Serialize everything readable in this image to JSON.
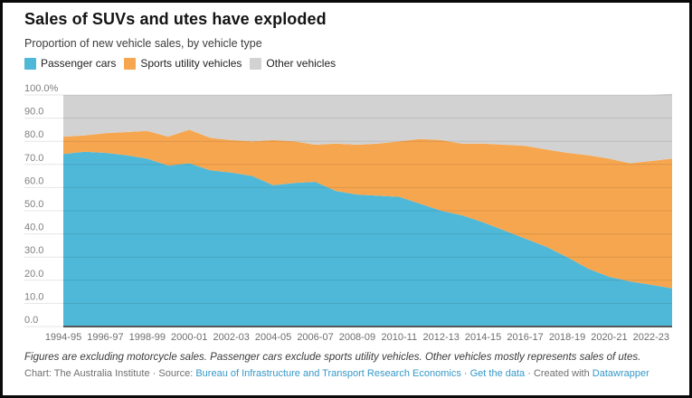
{
  "card": {
    "title": "Sales of SUVs and utes have exploded",
    "subtitle": "Proportion of new vehicle sales, by vehicle type"
  },
  "legend": {
    "items": [
      {
        "label": "Passenger cars",
        "color": "#4FB8D8"
      },
      {
        "label": "Sports utility vehicles",
        "color": "#F6A64F"
      },
      {
        "label": "Other vehicles",
        "color": "#D2D2D2"
      }
    ]
  },
  "chart_data": {
    "type": "area",
    "stacked": true,
    "unit": "%",
    "title": "Sales of SUVs and utes have exploded",
    "subtitle": "Proportion of new vehicle sales, by vehicle type",
    "grid": true,
    "legend_position": "top",
    "ylim": [
      0,
      100
    ],
    "x": [
      "1994-95",
      "1995-96",
      "1996-97",
      "1997-98",
      "1998-99",
      "1999-00",
      "2000-01",
      "2001-02",
      "2002-03",
      "2003-04",
      "2004-05",
      "2005-06",
      "2006-07",
      "2007-08",
      "2008-09",
      "2009-10",
      "2010-11",
      "2011-12",
      "2012-13",
      "2013-14",
      "2014-15",
      "2015-16",
      "2016-17",
      "2017-18",
      "2018-19",
      "2019-20",
      "2020-21",
      "2021-22",
      "2022-23",
      "2023-24"
    ],
    "x_tick_labels": [
      "1994-95",
      "1996-97",
      "1998-99",
      "2000-01",
      "2002-03",
      "2004-05",
      "2006-07",
      "2008-09",
      "2010-11",
      "2012-13",
      "2014-15",
      "2016-17",
      "2018-19",
      "2020-21",
      "2022-23"
    ],
    "y_ticks": [
      "100.0%",
      "90.0",
      "80.0",
      "70.0",
      "60.0",
      "50.0",
      "40.0",
      "30.0",
      "20.0",
      "10.0",
      "0.0"
    ],
    "series": [
      {
        "name": "Passenger cars",
        "color": "#4FB8D8",
        "values": [
          74.5,
          75.5,
          75.0,
          74.0,
          72.5,
          69.5,
          70.5,
          67.5,
          66.5,
          65.0,
          61.0,
          62.0,
          62.5,
          58.5,
          57.0,
          56.5,
          56.0,
          53.0,
          50.0,
          48.0,
          45.0,
          41.5,
          38.0,
          34.5,
          30.0,
          25.0,
          21.5,
          19.5,
          18.0,
          16.5
        ]
      },
      {
        "name": "Sports utility vehicles",
        "color": "#F6A64F",
        "values": [
          7.5,
          7.0,
          8.5,
          10.0,
          12.0,
          12.5,
          14.5,
          14.0,
          14.0,
          15.0,
          19.5,
          18.0,
          16.0,
          20.5,
          21.5,
          22.5,
          24.0,
          28.0,
          30.5,
          31.0,
          34.0,
          37.0,
          40.0,
          42.0,
          45.0,
          49.0,
          51.0,
          51.0,
          53.5,
          56.0
        ]
      },
      {
        "name": "Other vehicles",
        "color": "#D2D2D2",
        "values": [
          18.0,
          17.5,
          16.5,
          16.0,
          15.5,
          18.0,
          15.0,
          18.5,
          19.5,
          20.0,
          19.5,
          20.0,
          21.5,
          21.0,
          21.5,
          21.0,
          20.0,
          19.0,
          19.5,
          21.0,
          21.0,
          21.5,
          22.0,
          23.5,
          25.0,
          26.0,
          27.5,
          29.5,
          28.5,
          28.0
        ]
      }
    ]
  },
  "footer": {
    "note": "Figures are excluding motorcycle sales. Passenger cars exclude sports utility vehicles. Other vehicles mostly represents sales of utes.",
    "credit": {
      "prefix": "Chart: The Australia Institute · Source:",
      "source_link": "Bureau of Infrastructure and Transport Research Economics",
      "separator": "·",
      "get_data_link": "Get the data",
      "created_with": "· Created with",
      "datawrapper_link": "Datawrapper"
    }
  }
}
